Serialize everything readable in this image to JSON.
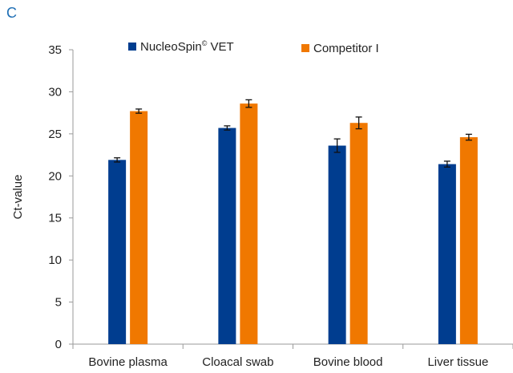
{
  "panel_label": "C",
  "chart_data": {
    "type": "bar",
    "categories": [
      "Bovine plasma",
      "Cloacal swab",
      "Bovine blood",
      "Liver tissue"
    ],
    "series": [
      {
        "name": "NucleoSpin© VET",
        "color": "#003d8f",
        "values": [
          21.9,
          25.7,
          23.6,
          21.4
        ],
        "errors": [
          0.25,
          0.25,
          0.8,
          0.35
        ]
      },
      {
        "name": "Competitor I",
        "color": "#f07800",
        "values": [
          27.7,
          28.6,
          26.3,
          24.6
        ],
        "errors": [
          0.25,
          0.45,
          0.7,
          0.35
        ]
      }
    ],
    "xlabel": "",
    "ylabel": "Ct-value",
    "ylim": [
      0,
      35
    ],
    "yticks": [
      0,
      5,
      10,
      15,
      20,
      25,
      30,
      35
    ],
    "legend": "top",
    "grid": false
  }
}
